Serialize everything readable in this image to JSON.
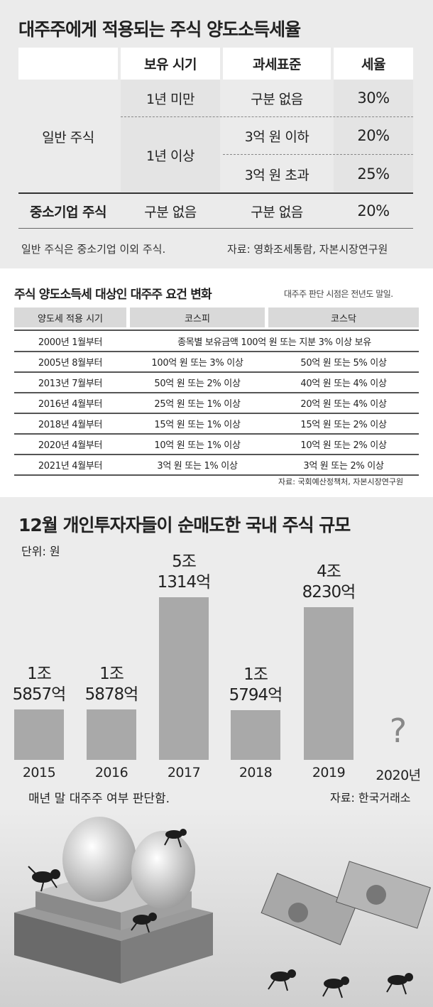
{
  "tax_table": {
    "title": "대주주에게 적용되는 주식 양도소득세율",
    "headers": [
      "보유 시기",
      "과세표준",
      "세율"
    ],
    "row_general": "일반 주식",
    "row_sme": "중소기업 주식",
    "hold_under1": "1년 미만",
    "hold_over1": "1년 이상",
    "hold_none": "구분 없음",
    "base_none1": "구분 없음",
    "base_under3": "3억 원 이하",
    "base_over3": "3억 원 초과",
    "base_none2": "구분 없음",
    "rate1": "30%",
    "rate2": "20%",
    "rate3": "25%",
    "rate4": "20%",
    "footnote": "일반 주식은 중소기업 이외 주식.",
    "source": "자료: 영화조세통람, 자본시장연구원"
  },
  "criteria_table": {
    "title": "주식 양도소득세 대상인 대주주 요건 변화",
    "note": "대주주 판단 시점은 전년도 말일.",
    "headers": [
      "양도세 적용 시기",
      "코스피",
      "코스닥"
    ],
    "rows": [
      {
        "period": "2000년 1월부터",
        "merged": "종목별 보유금액 100억 원 또는 지분 3% 이상 보유"
      },
      {
        "period": "2005년 8월부터",
        "kospi": "100억 원 또는 3% 이상",
        "kosdaq": "50억 원 또는 5% 이상"
      },
      {
        "period": "2013년 7월부터",
        "kospi": "50억 원 또는 2% 이상",
        "kosdaq": "40억 원 또는 4% 이상"
      },
      {
        "period": "2016년 4월부터",
        "kospi": "25억 원 또는 1% 이상",
        "kosdaq": "20억 원 또는 4% 이상"
      },
      {
        "period": "2018년 4월부터",
        "kospi": "15억 원 또는 1% 이상",
        "kosdaq": "15억 원 또는 2% 이상"
      },
      {
        "period": "2020년 4월부터",
        "kospi": "10억 원 또는 1% 이상",
        "kosdaq": "10억 원 또는 2% 이상"
      },
      {
        "period": "2021년 4월부터",
        "kospi": "3억 원 또는 1% 이상",
        "kosdaq": "3억 원 또는 2% 이상"
      }
    ],
    "source": "자료: 국회예산정책처, 자본시장연구원"
  },
  "chart_data": {
    "type": "bar",
    "title": "12월 개인투자자들이 순매도한 국내 주식 규모",
    "unit_label": "단위: 원",
    "categories": [
      "2015",
      "2016",
      "2017",
      "2018",
      "2019",
      "2020년"
    ],
    "values": [
      1.5857,
      1.5878,
      5.1314,
      1.5794,
      4.823,
      null
    ],
    "value_unit": "조",
    "data_labels": [
      [
        "1조",
        "5857억"
      ],
      [
        "1조",
        "5878억"
      ],
      [
        "5조",
        "1314억"
      ],
      [
        "1조",
        "5794억"
      ],
      [
        "4조",
        "8230억"
      ],
      [
        "?"
      ]
    ],
    "footnote": "매년 말 대주주 여부 판단함.",
    "source": "자료: 한국거래소",
    "bar_color": "#a9a9a9"
  }
}
